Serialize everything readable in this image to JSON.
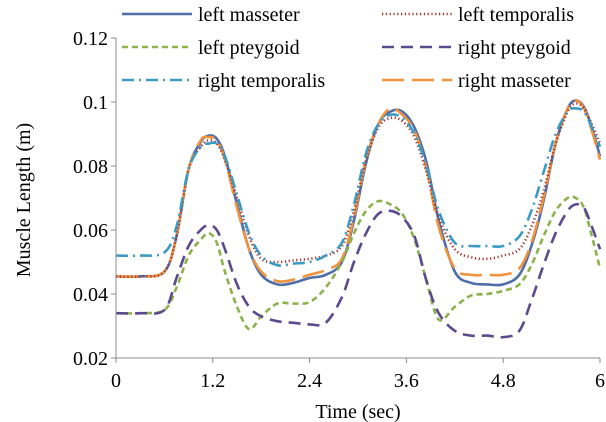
{
  "chart_data": {
    "type": "line",
    "xlabel": "Time (sec)",
    "ylabel": "Muscle Length (m)",
    "xlim": [
      0,
      6
    ],
    "ylim": [
      0.02,
      0.12
    ],
    "xticks": [
      0,
      1.2,
      2.4,
      3.6,
      4.8,
      6
    ],
    "xtick_labels": [
      "0",
      "1.2",
      "2.4",
      "3.6",
      "4.8",
      "6"
    ],
    "yticks": [
      0.02,
      0.04,
      0.06,
      0.08,
      0.1,
      0.12
    ],
    "ytick_labels": [
      "0.02",
      "0.04",
      "0.06",
      "0.08",
      "0.1",
      "0.12"
    ],
    "grid": false,
    "legend_position": "top",
    "x": [
      0,
      0.3,
      0.6,
      0.75,
      0.9,
      1.05,
      1.15,
      1.25,
      1.35,
      1.5,
      1.65,
      1.8,
      2.0,
      2.2,
      2.4,
      2.6,
      2.8,
      2.95,
      3.1,
      3.25,
      3.4,
      3.55,
      3.7,
      3.85,
      4.0,
      4.2,
      4.4,
      4.6,
      4.8,
      5.0,
      5.15,
      5.3,
      5.45,
      5.6,
      5.7,
      5.8,
      5.9,
      6.0
    ],
    "series": [
      {
        "name": "left masseter",
        "color": "#4F6FA8",
        "dash": "solid",
        "values": [
          0.0455,
          0.0455,
          0.047,
          0.058,
          0.079,
          0.0875,
          0.0895,
          0.0885,
          0.083,
          0.068,
          0.054,
          0.046,
          0.043,
          0.0435,
          0.045,
          0.046,
          0.05,
          0.063,
          0.081,
          0.093,
          0.097,
          0.097,
          0.092,
          0.081,
          0.063,
          0.047,
          0.0435,
          0.043,
          0.043,
          0.046,
          0.055,
          0.069,
          0.087,
          0.098,
          0.1005,
          0.0985,
          0.092,
          0.083
        ]
      },
      {
        "name": "right masseter",
        "color": "#F0923E",
        "dash": "long-dash",
        "values": [
          0.0455,
          0.0455,
          0.047,
          0.058,
          0.079,
          0.088,
          0.089,
          0.088,
          0.082,
          0.067,
          0.054,
          0.047,
          0.044,
          0.0445,
          0.046,
          0.0475,
          0.051,
          0.064,
          0.082,
          0.093,
          0.098,
          0.096,
          0.091,
          0.079,
          0.061,
          0.048,
          0.046,
          0.046,
          0.046,
          0.048,
          0.056,
          0.07,
          0.087,
          0.098,
          0.1005,
          0.098,
          0.091,
          0.082
        ]
      },
      {
        "name": "left temporalis",
        "color": "#A8322E",
        "dash": "dotted",
        "values": [
          0.0455,
          0.0455,
          0.047,
          0.058,
          0.079,
          0.086,
          0.088,
          0.087,
          0.082,
          0.07,
          0.058,
          0.051,
          0.05,
          0.0505,
          0.051,
          0.052,
          0.055,
          0.066,
          0.082,
          0.092,
          0.095,
          0.094,
          0.089,
          0.078,
          0.064,
          0.054,
          0.0515,
          0.051,
          0.052,
          0.054,
          0.061,
          0.072,
          0.087,
          0.097,
          0.0995,
          0.098,
          0.093,
          0.087
        ]
      },
      {
        "name": "right temporalis",
        "color": "#3B9BC4",
        "dash": "dash-dot",
        "values": [
          0.052,
          0.052,
          0.053,
          0.061,
          0.079,
          0.086,
          0.087,
          0.087,
          0.083,
          0.071,
          0.059,
          0.052,
          0.049,
          0.0495,
          0.05,
          0.052,
          0.056,
          0.068,
          0.084,
          0.093,
          0.096,
          0.095,
          0.09,
          0.08,
          0.066,
          0.056,
          0.055,
          0.055,
          0.055,
          0.058,
          0.066,
          0.078,
          0.09,
          0.097,
          0.098,
          0.097,
          0.092,
          0.086
        ]
      },
      {
        "name": "left pteygoid",
        "color": "#8DB24B",
        "dash": "short-dash",
        "values": [
          0.034,
          0.034,
          0.035,
          0.042,
          0.052,
          0.057,
          0.059,
          0.056,
          0.047,
          0.036,
          0.029,
          0.033,
          0.037,
          0.037,
          0.0375,
          0.042,
          0.05,
          0.059,
          0.066,
          0.069,
          0.068,
          0.065,
          0.057,
          0.044,
          0.032,
          0.036,
          0.0395,
          0.04,
          0.041,
          0.043,
          0.049,
          0.058,
          0.066,
          0.07,
          0.07,
          0.067,
          0.058,
          0.048
        ]
      },
      {
        "name": "right pteygoid",
        "color": "#5B4A8E",
        "dash": "dash",
        "values": [
          0.034,
          0.034,
          0.035,
          0.045,
          0.055,
          0.06,
          0.0615,
          0.06,
          0.054,
          0.043,
          0.036,
          0.033,
          0.0315,
          0.031,
          0.0305,
          0.031,
          0.039,
          0.05,
          0.059,
          0.065,
          0.066,
          0.064,
          0.058,
          0.044,
          0.034,
          0.0285,
          0.027,
          0.027,
          0.0265,
          0.0285,
          0.038,
          0.049,
          0.059,
          0.066,
          0.068,
          0.067,
          0.061,
          0.054
        ]
      }
    ]
  }
}
